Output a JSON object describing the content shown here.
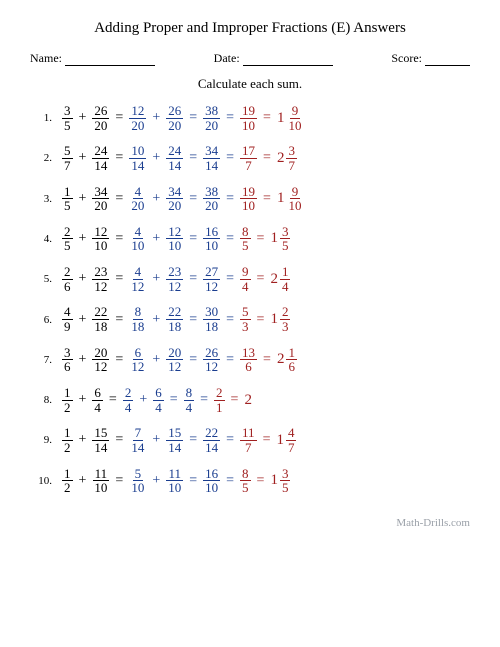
{
  "title": "Adding Proper and Improper Fractions (E) Answers",
  "header": {
    "name_label": "Name:",
    "date_label": "Date:",
    "score_label": "Score:",
    "name_underline_w": 90,
    "date_underline_w": 90,
    "score_underline_w": 45
  },
  "instruction": "Calculate each sum.",
  "colors": {
    "black": "#000000",
    "blue": "#1a3d8f",
    "red": "#a02020"
  },
  "problems": [
    {
      "n": "1.",
      "a": [
        3,
        5
      ],
      "b": [
        26,
        20
      ],
      "step1a": [
        12,
        20
      ],
      "step1b": [
        26,
        20
      ],
      "sum": [
        38,
        20
      ],
      "simp": [
        19,
        10
      ],
      "mixed": {
        "w": 1,
        "n": 9,
        "d": 10
      }
    },
    {
      "n": "2.",
      "a": [
        5,
        7
      ],
      "b": [
        24,
        14
      ],
      "step1a": [
        10,
        14
      ],
      "step1b": [
        24,
        14
      ],
      "sum": [
        34,
        14
      ],
      "simp": [
        17,
        7
      ],
      "mixed": {
        "w": 2,
        "n": 3,
        "d": 7
      }
    },
    {
      "n": "3.",
      "a": [
        1,
        5
      ],
      "b": [
        34,
        20
      ],
      "step1a": [
        4,
        20
      ],
      "step1b": [
        34,
        20
      ],
      "sum": [
        38,
        20
      ],
      "simp": [
        19,
        10
      ],
      "mixed": {
        "w": 1,
        "n": 9,
        "d": 10
      }
    },
    {
      "n": "4.",
      "a": [
        2,
        5
      ],
      "b": [
        12,
        10
      ],
      "step1a": [
        4,
        10
      ],
      "step1b": [
        12,
        10
      ],
      "sum": [
        16,
        10
      ],
      "simp": [
        8,
        5
      ],
      "mixed": {
        "w": 1,
        "n": 3,
        "d": 5
      }
    },
    {
      "n": "5.",
      "a": [
        2,
        6
      ],
      "b": [
        23,
        12
      ],
      "step1a": [
        4,
        12
      ],
      "step1b": [
        23,
        12
      ],
      "sum": [
        27,
        12
      ],
      "simp": [
        9,
        4
      ],
      "mixed": {
        "w": 2,
        "n": 1,
        "d": 4
      }
    },
    {
      "n": "6.",
      "a": [
        4,
        9
      ],
      "b": [
        22,
        18
      ],
      "step1a": [
        8,
        18
      ],
      "step1b": [
        22,
        18
      ],
      "sum": [
        30,
        18
      ],
      "simp": [
        5,
        3
      ],
      "mixed": {
        "w": 1,
        "n": 2,
        "d": 3
      }
    },
    {
      "n": "7.",
      "a": [
        3,
        6
      ],
      "b": [
        20,
        12
      ],
      "step1a": [
        6,
        12
      ],
      "step1b": [
        20,
        12
      ],
      "sum": [
        26,
        12
      ],
      "simp": [
        13,
        6
      ],
      "mixed": {
        "w": 2,
        "n": 1,
        "d": 6
      }
    },
    {
      "n": "8.",
      "a": [
        1,
        2
      ],
      "b": [
        6,
        4
      ],
      "step1a": [
        2,
        4
      ],
      "step1b": [
        6,
        4
      ],
      "sum": [
        8,
        4
      ],
      "simp": [
        2,
        1
      ],
      "mixed": {
        "w": 2
      }
    },
    {
      "n": "9.",
      "a": [
        1,
        2
      ],
      "b": [
        15,
        14
      ],
      "step1a": [
        7,
        14
      ],
      "step1b": [
        15,
        14
      ],
      "sum": [
        22,
        14
      ],
      "simp": [
        11,
        7
      ],
      "mixed": {
        "w": 1,
        "n": 4,
        "d": 7
      }
    },
    {
      "n": "10.",
      "a": [
        1,
        2
      ],
      "b": [
        11,
        10
      ],
      "step1a": [
        5,
        10
      ],
      "step1b": [
        11,
        10
      ],
      "sum": [
        16,
        10
      ],
      "simp": [
        8,
        5
      ],
      "mixed": {
        "w": 1,
        "n": 3,
        "d": 5
      }
    }
  ],
  "footer": "Math-Drills.com"
}
